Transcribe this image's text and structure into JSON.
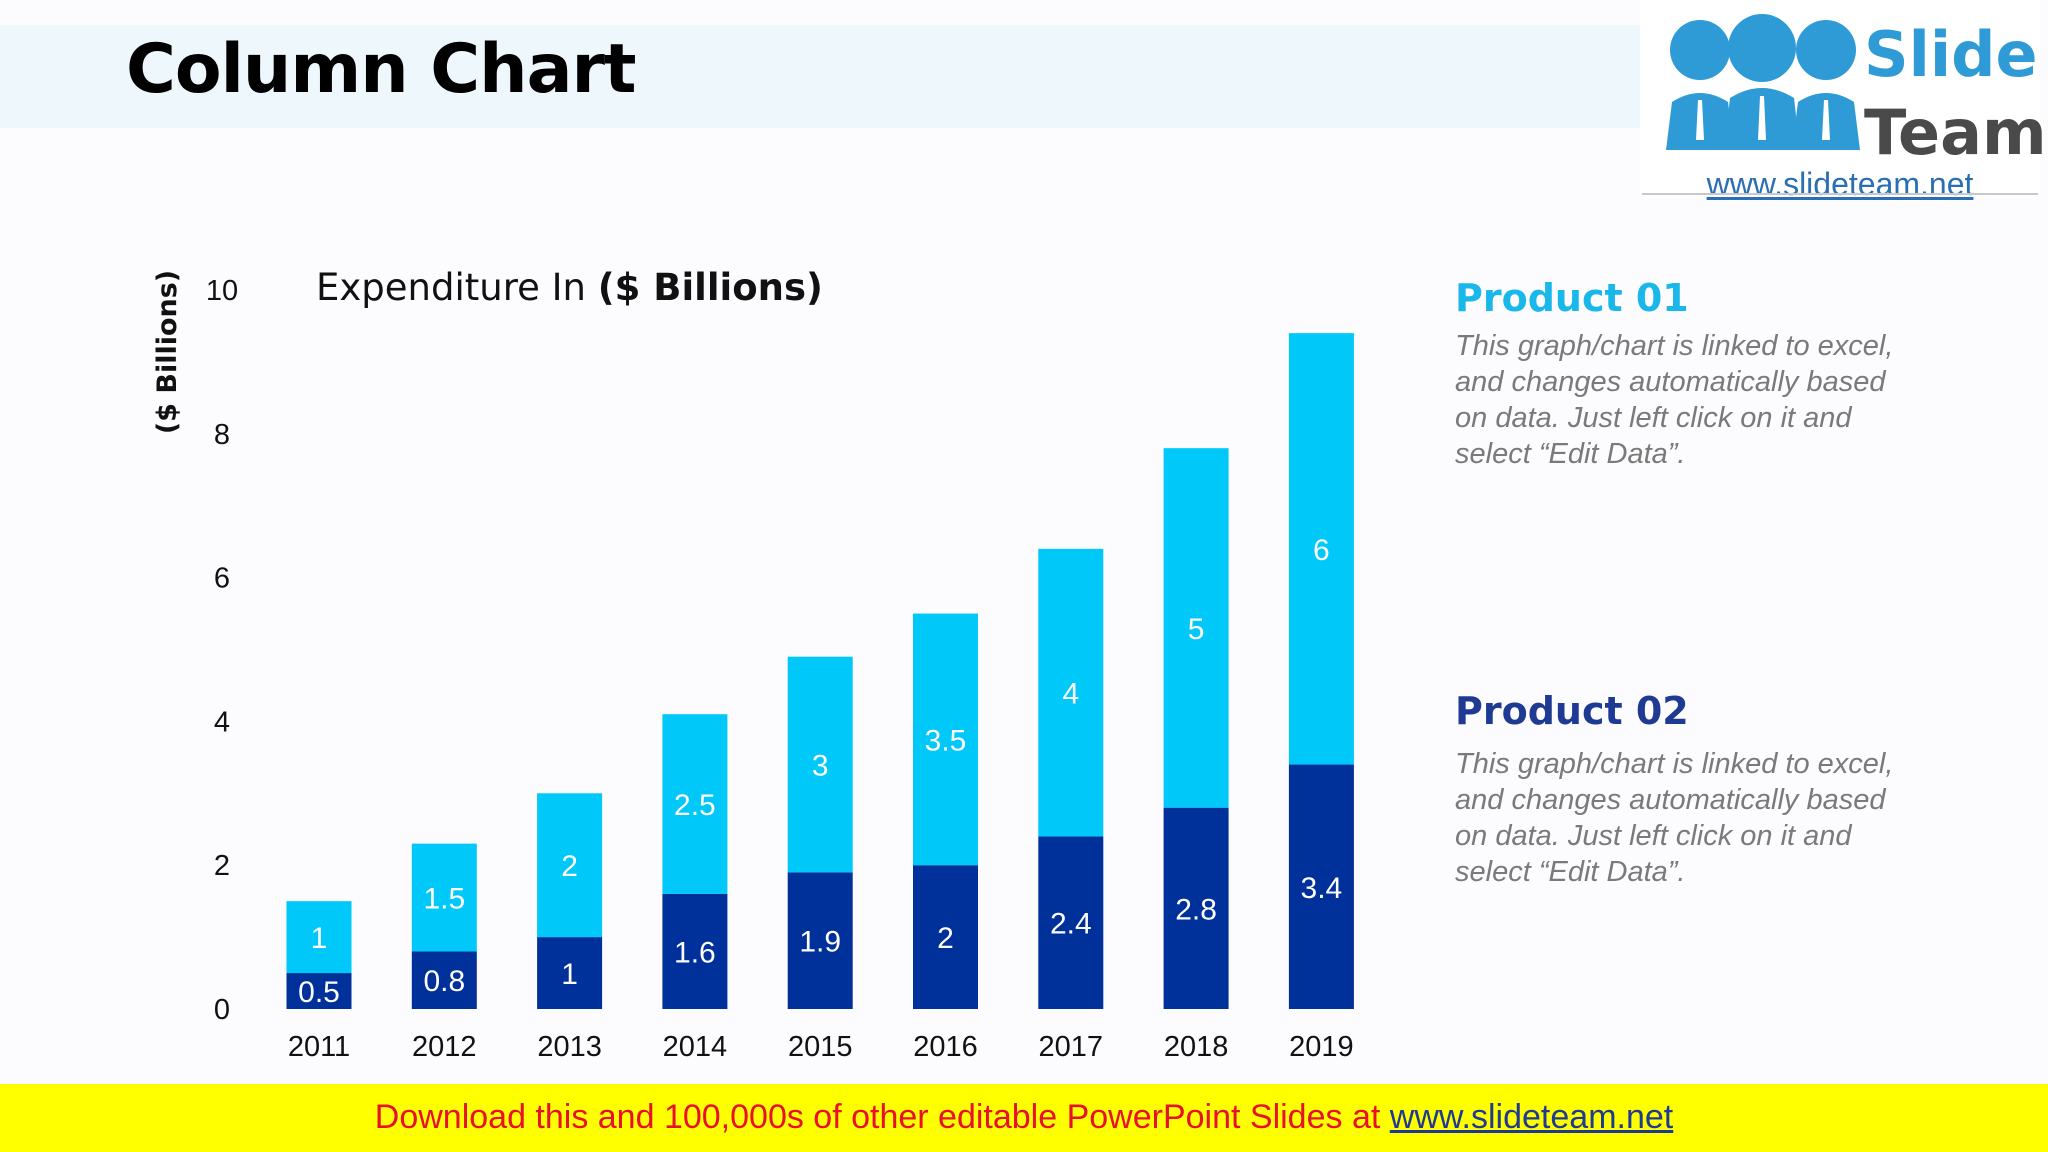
{
  "slide": {
    "title": "Column Chart"
  },
  "logo": {
    "word1": "Slide",
    "word2": "Team",
    "url": "www.slideteam.net"
  },
  "colors": {
    "product01": "#00c8f8",
    "product02": "#00309a",
    "legend01": "#1ab7ea",
    "legend02": "#1f3a93"
  },
  "chart_data": {
    "type": "bar",
    "stacked": true,
    "title_prefix": "Expenditure In ",
    "title_bold": "($ Billions)",
    "ylabel": "($ Billions)",
    "xlabel": "",
    "ylim": [
      0,
      10
    ],
    "yticks": [
      "0",
      "2",
      "4",
      "6",
      "8",
      "10"
    ],
    "categories": [
      "2011",
      "2012",
      "2013",
      "2014",
      "2015",
      "2016",
      "2017",
      "2018",
      "2019"
    ],
    "series": [
      {
        "name": "Product 02",
        "values": [
          0.5,
          0.8,
          1,
          1.6,
          1.9,
          2,
          2.4,
          2.8,
          3.4
        ]
      },
      {
        "name": "Product 01",
        "values": [
          1,
          1.5,
          2,
          2.5,
          3,
          3.5,
          4,
          5,
          6
        ]
      }
    ]
  },
  "legend": [
    {
      "title": "Product 01",
      "lines": [
        "This graph/chart is linked to excel,",
        "and changes automatically based",
        "on data. Just left click on it and",
        "select “Edit Data”."
      ]
    },
    {
      "title": "Product 02",
      "lines": [
        "This graph/chart is linked to excel,",
        "and changes automatically based",
        "on data. Just left click on it and",
        "select “Edit Data”."
      ]
    }
  ],
  "footer": {
    "text": "Download this and 100,000s of other editable PowerPoint Slides at ",
    "link": "www.slideteam.net"
  }
}
